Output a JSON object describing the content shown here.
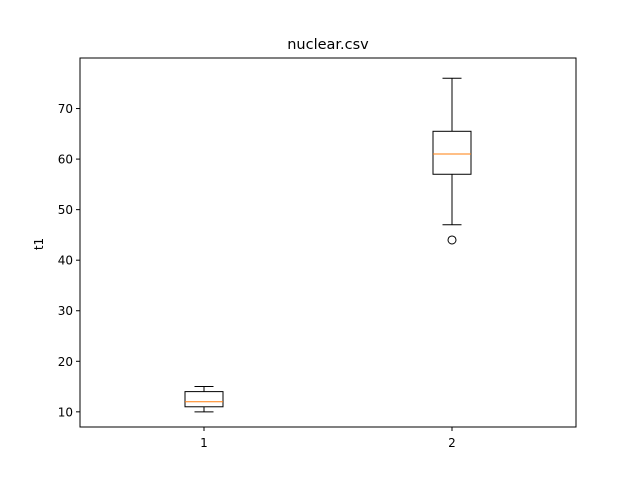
{
  "chart_data": {
    "type": "box",
    "title": "nuclear.csv",
    "xlabel": "",
    "ylabel": "t1",
    "ylim": [
      7,
      80
    ],
    "yticks": [
      10,
      20,
      30,
      40,
      50,
      60,
      70
    ],
    "xlim": [
      0.5,
      2.5
    ],
    "categories": [
      "1",
      "2"
    ],
    "boxes": [
      {
        "category": "1",
        "whisker_low": 10,
        "q1": 11,
        "median": 12,
        "q3": 14,
        "whisker_high": 15,
        "outliers": []
      },
      {
        "category": "2",
        "whisker_low": 47,
        "q1": 57,
        "median": 61,
        "q3": 65.5,
        "whisker_high": 76,
        "outliers": [
          44
        ]
      }
    ],
    "grid": false,
    "colors": {
      "box": "#000000",
      "median": "#ff7f0e",
      "background": "#ffffff"
    }
  }
}
